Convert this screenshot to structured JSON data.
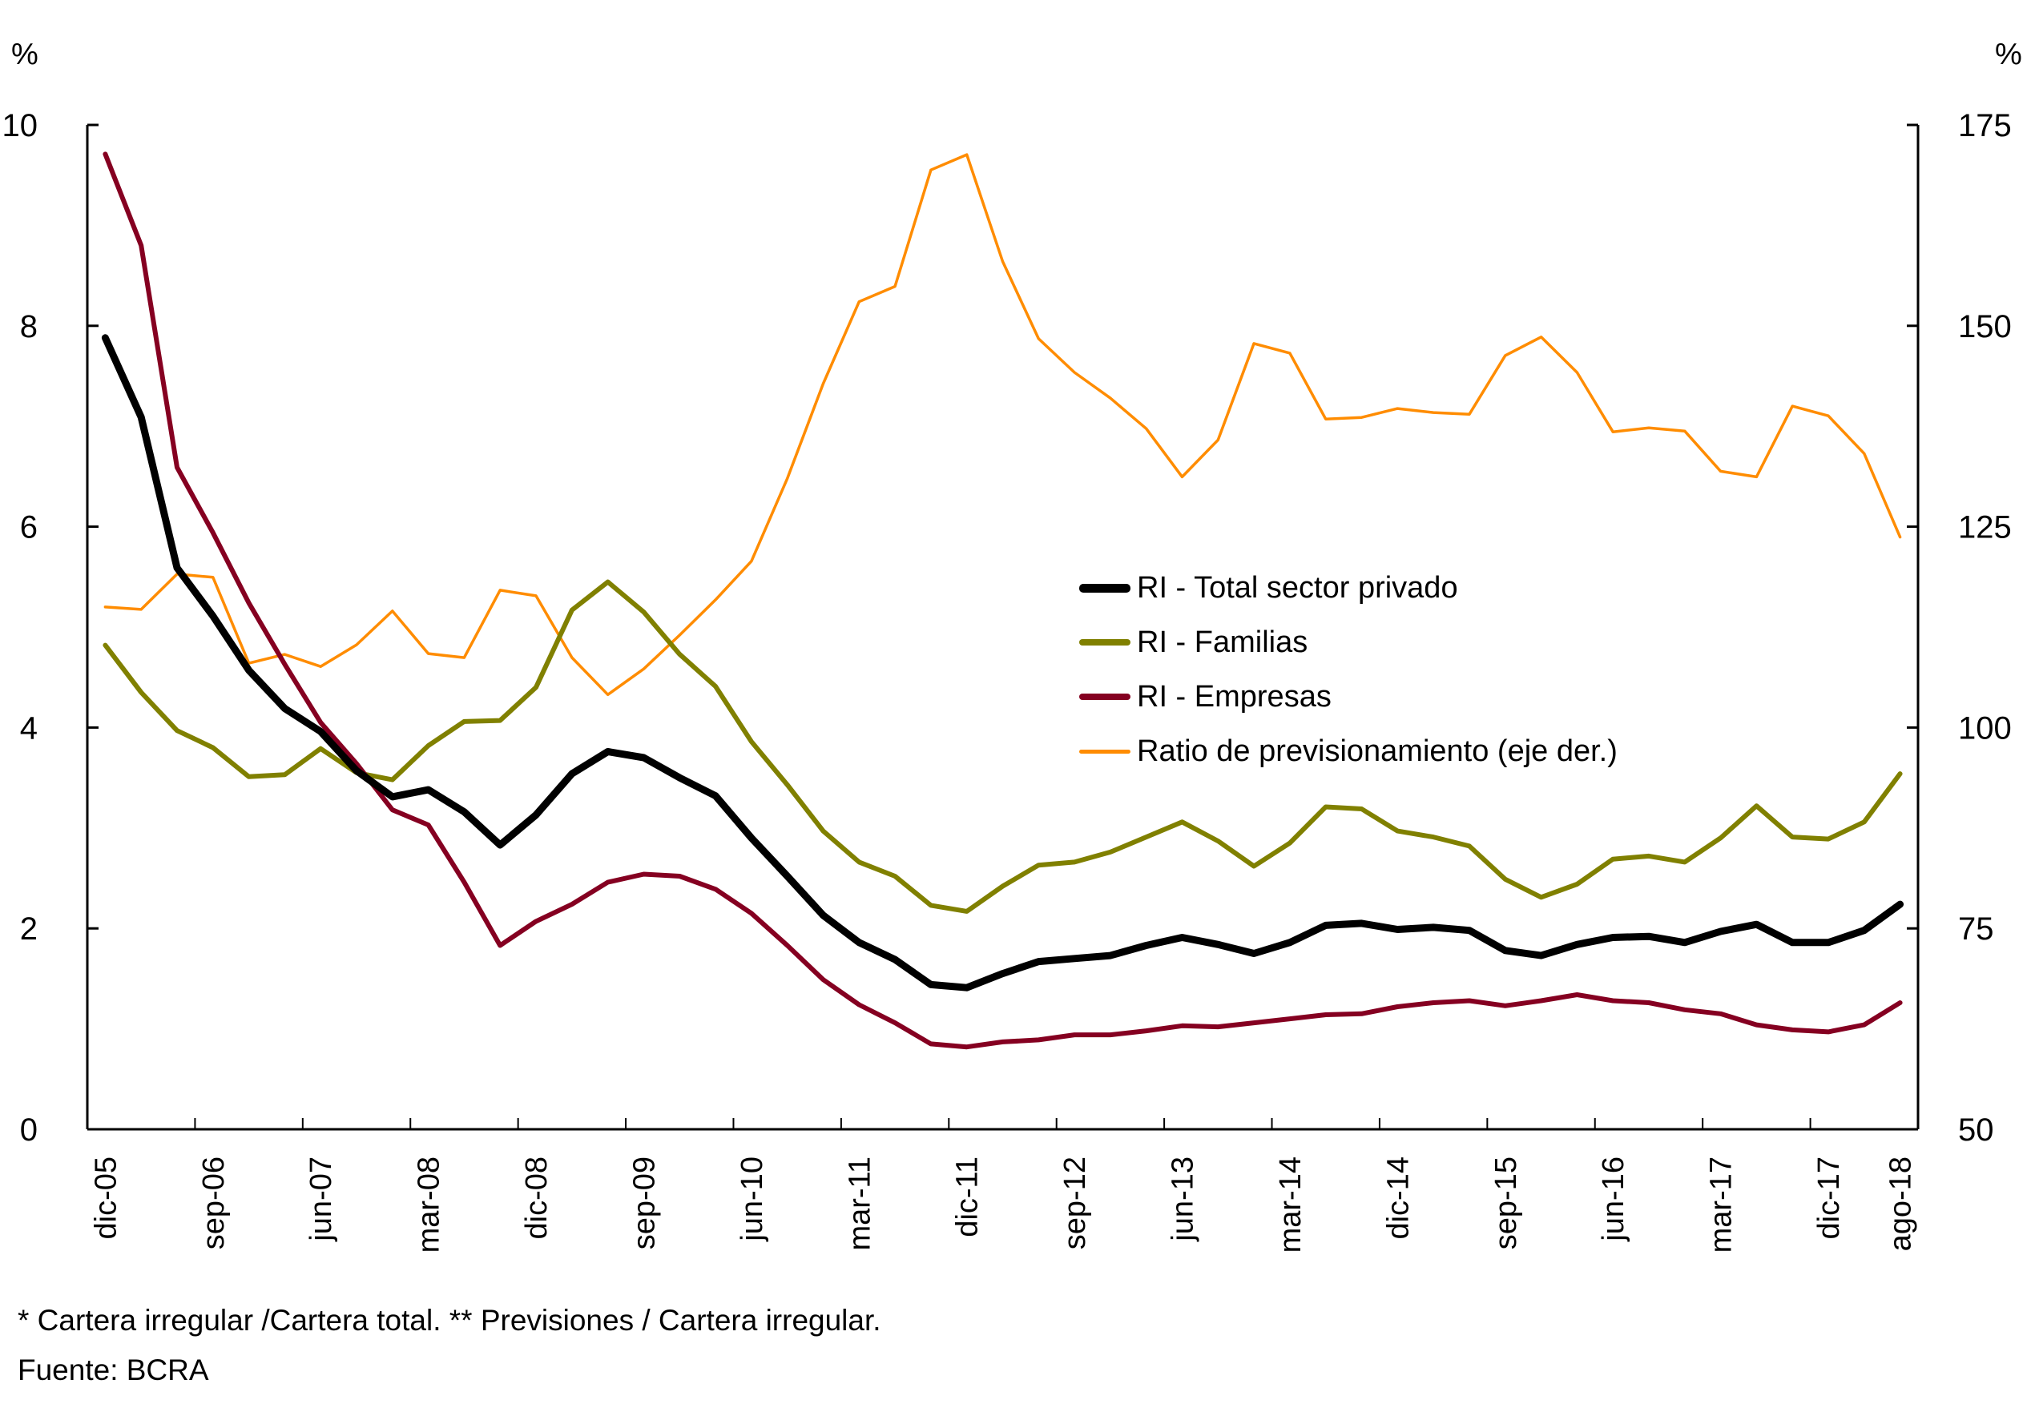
{
  "chart_data": {
    "type": "line",
    "title": "",
    "left_axis": {
      "unit_label": "%",
      "ylim": [
        0,
        10
      ],
      "ticks": [
        0,
        2,
        4,
        6,
        8,
        10
      ]
    },
    "right_axis": {
      "unit_label": "%",
      "ylim": [
        50,
        175
      ],
      "ticks": [
        50,
        75,
        100,
        125,
        150,
        175
      ]
    },
    "x": [
      "dic-05",
      "mar-06",
      "jun-06",
      "sep-06",
      "dic-06",
      "mar-07",
      "jun-07",
      "sep-07",
      "dic-07",
      "mar-08",
      "jun-08",
      "sep-08",
      "dic-08",
      "mar-09",
      "jun-09",
      "sep-09",
      "dic-09",
      "mar-10",
      "jun-10",
      "sep-10",
      "dic-10",
      "mar-11",
      "jun-11",
      "sep-11",
      "dic-11",
      "mar-12",
      "jun-12",
      "sep-12",
      "dic-12",
      "mar-13",
      "jun-13",
      "sep-13",
      "dic-13",
      "mar-14",
      "jun-14",
      "sep-14",
      "dic-14",
      "mar-15",
      "jun-15",
      "sep-15",
      "dic-15",
      "mar-16",
      "jun-16",
      "sep-16",
      "dic-16",
      "mar-17",
      "jun-17",
      "sep-17",
      "dic-17",
      "mar-18",
      "ago-18"
    ],
    "x_tick_labels": [
      "dic-05",
      "sep-06",
      "jun-07",
      "mar-08",
      "dic-08",
      "sep-09",
      "jun-10",
      "mar-11",
      "dic-11",
      "sep-12",
      "jun-13",
      "mar-14",
      "dic-14",
      "sep-15",
      "jun-16",
      "mar-17",
      "dic-17",
      "ago-18"
    ],
    "series": [
      {
        "name": "RI - Total sector privado",
        "axis": "left",
        "color": "#000000",
        "width": "thick",
        "values": [
          7.88,
          7.09,
          5.59,
          5.11,
          4.57,
          4.19,
          3.96,
          3.57,
          3.31,
          3.38,
          3.16,
          2.83,
          3.13,
          3.54,
          3.76,
          3.7,
          3.5,
          3.32,
          2.9,
          2.52,
          2.13,
          1.86,
          1.69,
          1.44,
          1.41,
          1.55,
          1.67,
          1.7,
          1.73,
          1.83,
          1.91,
          1.84,
          1.75,
          1.86,
          2.03,
          2.05,
          1.99,
          2.01,
          1.98,
          1.78,
          1.73,
          1.84,
          1.91,
          1.92,
          1.86,
          1.97,
          2.04,
          1.86,
          1.86,
          1.98,
          2.24
        ]
      },
      {
        "name": "RI - Familias",
        "axis": "left",
        "color": "#808000",
        "width": "medium",
        "values": [
          4.82,
          4.35,
          3.97,
          3.8,
          3.51,
          3.53,
          3.79,
          3.55,
          3.48,
          3.82,
          4.06,
          4.07,
          4.4,
          5.17,
          5.45,
          5.15,
          4.73,
          4.41,
          3.86,
          3.43,
          2.97,
          2.66,
          2.52,
          2.23,
          2.17,
          2.42,
          2.63,
          2.66,
          2.76,
          2.91,
          3.06,
          2.87,
          2.62,
          2.85,
          3.21,
          3.19,
          2.97,
          2.91,
          2.82,
          2.49,
          2.31,
          2.44,
          2.69,
          2.72,
          2.66,
          2.9,
          3.22,
          2.91,
          2.89,
          3.06,
          3.54
        ]
      },
      {
        "name": "RI - Empresas",
        "axis": "left",
        "color": "#850021",
        "width": "medium",
        "values": [
          9.71,
          8.8,
          6.59,
          5.94,
          5.24,
          4.63,
          4.05,
          3.64,
          3.18,
          3.03,
          2.46,
          1.83,
          2.07,
          2.24,
          2.46,
          2.54,
          2.52,
          2.39,
          2.15,
          1.83,
          1.49,
          1.24,
          1.06,
          0.85,
          0.82,
          0.87,
          0.89,
          0.94,
          0.94,
          0.98,
          1.03,
          1.02,
          1.06,
          1.1,
          1.14,
          1.15,
          1.22,
          1.26,
          1.28,
          1.23,
          1.28,
          1.34,
          1.28,
          1.26,
          1.19,
          1.15,
          1.04,
          0.99,
          0.97,
          1.04,
          1.26
        ]
      },
      {
        "name": "Ratio de previsionamiento (eje der.)",
        "axis": "right",
        "color": "#FF8C00",
        "width": "thin",
        "values": [
          115.0,
          114.7,
          119.1,
          118.7,
          108.0,
          109.1,
          107.6,
          110.3,
          114.5,
          109.2,
          108.7,
          117.1,
          116.4,
          108.7,
          104.1,
          107.3,
          111.5,
          115.9,
          120.7,
          131.0,
          142.8,
          153.0,
          154.9,
          169.4,
          171.3,
          158.0,
          148.4,
          144.2,
          141.0,
          137.2,
          131.2,
          135.8,
          147.8,
          146.6,
          138.4,
          138.6,
          139.7,
          139.2,
          139.0,
          146.3,
          148.6,
          144.2,
          136.8,
          137.3,
          136.9,
          131.9,
          131.2,
          140.0,
          138.8,
          134.1,
          123.7
        ]
      }
    ],
    "legend_position": "center-right",
    "grid": false
  },
  "footnotes": {
    "definitions": "* Cartera irregular /Cartera total. ** Previsiones / Cartera irregular.",
    "source": "Fuente: BCRA"
  }
}
